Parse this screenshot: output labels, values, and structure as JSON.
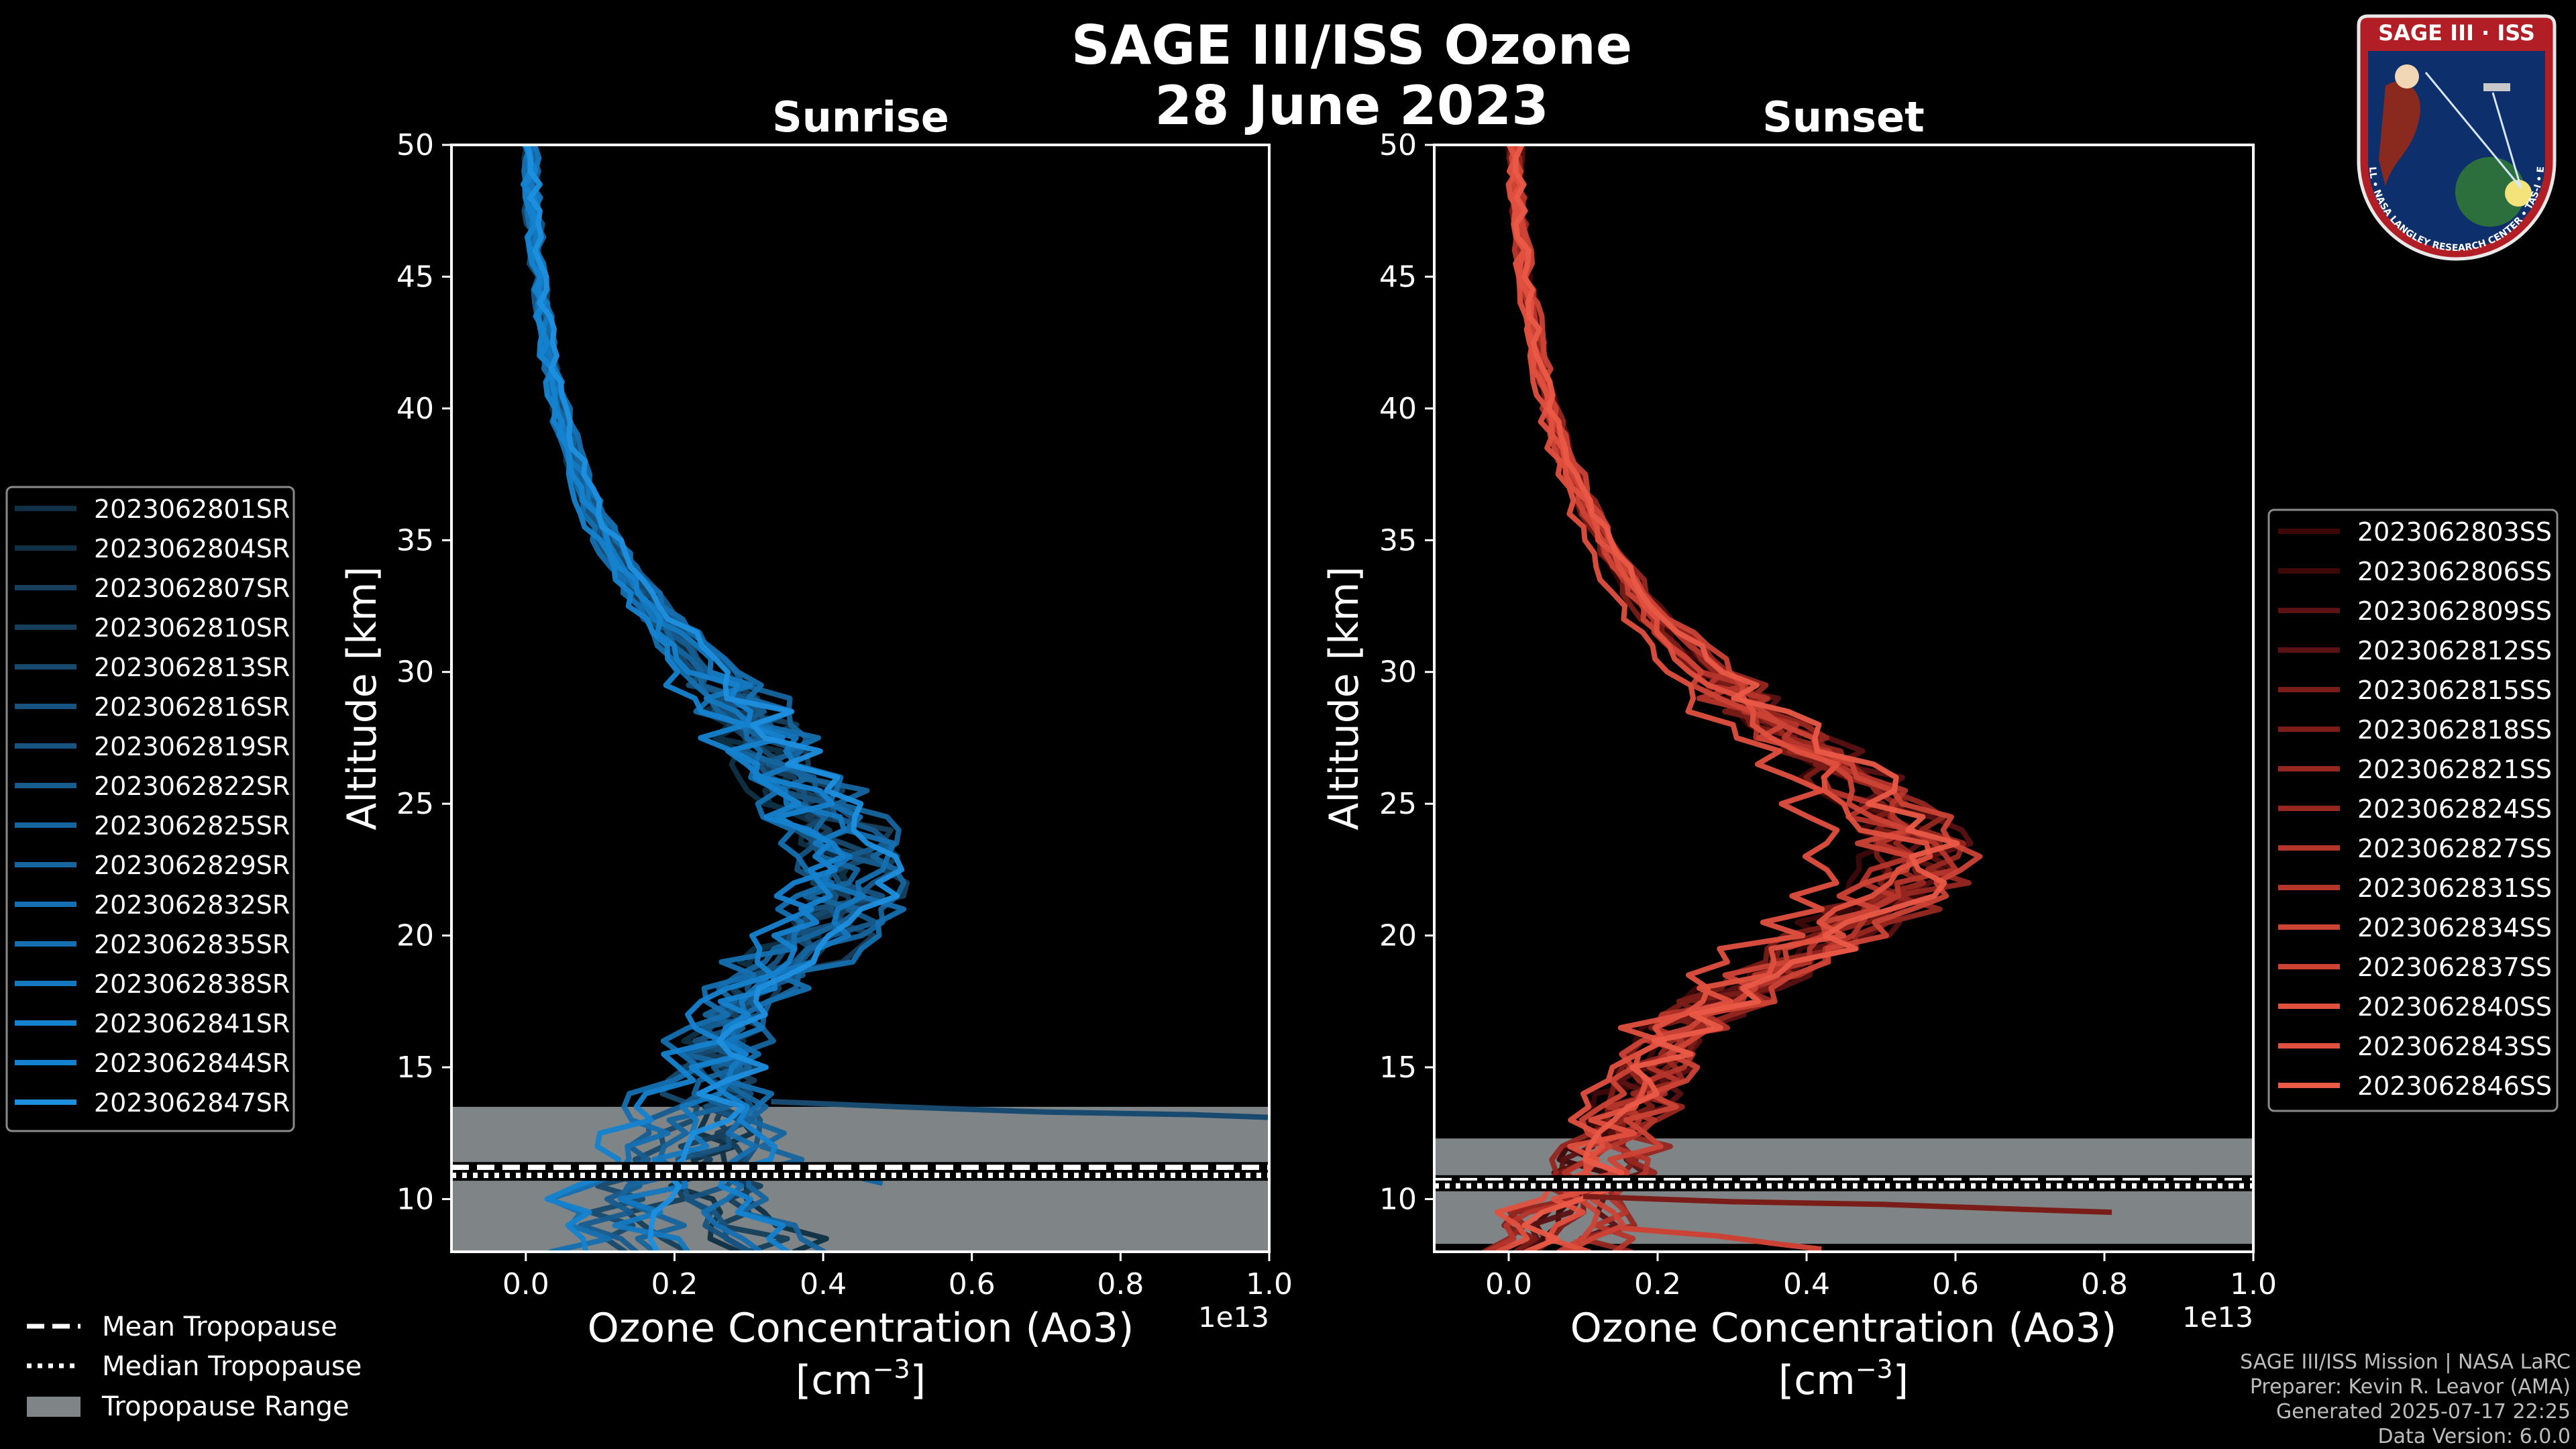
{
  "title": "SAGE III/ISS Ozone",
  "date": "28 June 2023",
  "colors": {
    "background": "#000000",
    "sunrise_palette": [
      "#0f3045",
      "#173f5c",
      "#174a6e",
      "#17537f",
      "#165c8f",
      "#16659e",
      "#156fb0",
      "#1478bf",
      "#1582cf",
      "#1d8fdf"
    ],
    "sunset_palette": [
      "#3d0808",
      "#5a1212",
      "#7a1c17",
      "#962720",
      "#b5352b",
      "#cc4336",
      "#e0503f",
      "#ea5a47"
    ],
    "tropopause_fill": "#7f8486"
  },
  "chart_data": [
    {
      "type": "line",
      "panel": "sunrise",
      "title": "Sunrise",
      "xlabel": "Ozone Concentration (Ao3)",
      "xunits": "[cm$^{-3}$]",
      "xunits_base": "[cm",
      "xunits_exp": "−3",
      "xunits_close": "]",
      "ylabel": "Altitude [km]",
      "offset_text": "1e13",
      "xlim": [
        -0.1,
        1.0
      ],
      "ylim": [
        8,
        50
      ],
      "xticks": [
        0.0,
        0.2,
        0.4,
        0.6,
        0.8,
        1.0
      ],
      "xtick_labels": [
        "0.0",
        "0.2",
        "0.4",
        "0.6",
        "0.8",
        "1.0"
      ],
      "yticks": [
        10,
        15,
        20,
        25,
        30,
        35,
        40,
        45,
        50
      ],
      "ytick_labels": [
        "10",
        "15",
        "20",
        "25",
        "30",
        "35",
        "40",
        "45",
        "50"
      ],
      "tropopause": {
        "min": 8,
        "max": 13.5,
        "mean": 11.2,
        "median": 10.9
      },
      "base_profile": {
        "altitude": [
          8,
          9,
          10,
          11,
          12,
          13,
          14,
          15,
          16,
          17,
          18,
          19,
          20,
          21,
          22,
          23,
          24,
          25,
          26,
          27,
          28,
          30,
          32,
          34,
          36,
          38,
          40,
          42,
          44,
          46,
          48,
          50
        ],
        "concentration": [
          0.2,
          0.18,
          0.17,
          0.2,
          0.22,
          0.23,
          0.24,
          0.25,
          0.26,
          0.28,
          0.31,
          0.35,
          0.39,
          0.42,
          0.43,
          0.43,
          0.41,
          0.38,
          0.35,
          0.33,
          0.3,
          0.24,
          0.18,
          0.13,
          0.09,
          0.065,
          0.045,
          0.03,
          0.02,
          0.012,
          0.008,
          0.005
        ]
      },
      "series": [
        {
          "name": "2023062801SR",
          "scale": 0.88,
          "offset": 0.02,
          "low_shift": 0.06,
          "seed": 1
        },
        {
          "name": "2023062804SR",
          "scale": 0.96,
          "offset": -0.01,
          "low_shift": 0.2,
          "seed": 2
        },
        {
          "name": "2023062807SR",
          "scale": 1.1,
          "offset": 0.0,
          "low_shift": -0.02,
          "seed": 3
        },
        {
          "name": "2023062810SR",
          "scale": 0.92,
          "offset": 0.03,
          "low_shift": 0.12,
          "seed": 4
        },
        {
          "name": "2023062813SR",
          "scale": 1.05,
          "offset": -0.02,
          "low_shift": -0.06,
          "seed": 5
        },
        {
          "name": "2023062816SR",
          "scale": 1.0,
          "offset": 0.01,
          "low_shift": 0.05,
          "seed": 6
        },
        {
          "name": "2023062819SR",
          "scale": 0.85,
          "offset": 0.04,
          "low_shift": 0.1,
          "seed": 7
        },
        {
          "name": "2023062822SR",
          "scale": 1.15,
          "offset": -0.03,
          "low_shift": -0.08,
          "seed": 8
        },
        {
          "name": "2023062825SR",
          "scale": 0.98,
          "offset": 0.0,
          "low_shift": 0.0,
          "seed": 9
        },
        {
          "name": "2023062829SR",
          "scale": 1.08,
          "offset": 0.02,
          "low_shift": 0.15,
          "seed": 10
        },
        {
          "name": "2023062832SR",
          "scale": 0.9,
          "offset": -0.01,
          "low_shift": -0.1,
          "seed": 11
        },
        {
          "name": "2023062835SR",
          "scale": 1.12,
          "offset": 0.01,
          "low_shift": 0.08,
          "seed": 12
        },
        {
          "name": "2023062838SR",
          "scale": 0.94,
          "offset": 0.03,
          "low_shift": -0.04,
          "seed": 13
        },
        {
          "name": "2023062841SR",
          "scale": 1.02,
          "offset": -0.02,
          "low_shift": 0.18,
          "seed": 14
        },
        {
          "name": "2023062844SR",
          "scale": 0.87,
          "offset": 0.0,
          "low_shift": -0.12,
          "seed": 15
        },
        {
          "name": "2023062847SR",
          "scale": 1.06,
          "offset": 0.02,
          "low_shift": -0.03,
          "seed": 16
        }
      ],
      "outliers": [
        {
          "altitude": [
            13.7,
            13.5,
            13.3,
            13.2,
            13.1
          ],
          "concentration": [
            0.33,
            0.5,
            0.7,
            0.9,
            1.0
          ]
        },
        {
          "altitude": [
            11.0,
            10.8,
            10.6
          ],
          "concentration": [
            0.35,
            0.45,
            0.48
          ]
        }
      ],
      "legend": {
        "location": "left-outside"
      }
    },
    {
      "type": "line",
      "panel": "sunset",
      "title": "Sunset",
      "xlabel": "Ozone Concentration (Ao3)",
      "xunits": "[cm$^{-3}$]",
      "xunits_base": "[cm",
      "xunits_exp": "−3",
      "xunits_close": "]",
      "ylabel": "Altitude [km]",
      "offset_text": "1e13",
      "xlim": [
        -0.1,
        1.0
      ],
      "ylim": [
        8,
        50
      ],
      "xticks": [
        0.0,
        0.2,
        0.4,
        0.6,
        0.8,
        1.0
      ],
      "xtick_labels": [
        "0.0",
        "0.2",
        "0.4",
        "0.6",
        "0.8",
        "1.0"
      ],
      "yticks": [
        10,
        15,
        20,
        25,
        30,
        35,
        40,
        45,
        50
      ],
      "ytick_labels": [
        "10",
        "15",
        "20",
        "25",
        "30",
        "35",
        "40",
        "45",
        "50"
      ],
      "tropopause": {
        "min": 8.3,
        "max": 12.3,
        "mean": 10.7,
        "median": 10.5
      },
      "base_profile": {
        "altitude": [
          8,
          9,
          10,
          11,
          12,
          13,
          14,
          15,
          16,
          17,
          18,
          19,
          20,
          21,
          22,
          23,
          24,
          25,
          26,
          27,
          28,
          30,
          32,
          34,
          36,
          38,
          40,
          42,
          44,
          46,
          48,
          50
        ],
        "concentration": [
          0.03,
          0.05,
          0.08,
          0.1,
          0.12,
          0.14,
          0.17,
          0.19,
          0.22,
          0.26,
          0.32,
          0.38,
          0.44,
          0.5,
          0.54,
          0.55,
          0.54,
          0.5,
          0.46,
          0.41,
          0.36,
          0.27,
          0.2,
          0.15,
          0.11,
          0.08,
          0.055,
          0.04,
          0.028,
          0.018,
          0.012,
          0.008
        ]
      },
      "series": [
        {
          "name": "2023062803SS",
          "scale": 0.92,
          "offset": 0.0,
          "low_shift": 0.02,
          "seed": 21
        },
        {
          "name": "2023062806SS",
          "scale": 1.02,
          "offset": -0.01,
          "low_shift": -0.02,
          "seed": 22
        },
        {
          "name": "2023062809SS",
          "scale": 0.97,
          "offset": 0.02,
          "low_shift": 0.06,
          "seed": 23
        },
        {
          "name": "2023062812SS",
          "scale": 1.06,
          "offset": 0.0,
          "low_shift": -0.03,
          "seed": 24
        },
        {
          "name": "2023062815SS",
          "scale": 0.9,
          "offset": 0.01,
          "low_shift": 0.04,
          "seed": 25
        },
        {
          "name": "2023062818SS",
          "scale": 1.04,
          "offset": -0.02,
          "low_shift": 0.0,
          "seed": 26
        },
        {
          "name": "2023062821SS",
          "scale": 0.95,
          "offset": 0.02,
          "low_shift": 0.08,
          "seed": 27
        },
        {
          "name": "2023062824SS",
          "scale": 1.08,
          "offset": 0.0,
          "low_shift": -0.05,
          "seed": 28
        },
        {
          "name": "2023062827SS",
          "scale": 0.98,
          "offset": -0.01,
          "low_shift": 0.1,
          "seed": 29
        },
        {
          "name": "2023062831SS",
          "scale": 1.01,
          "offset": 0.01,
          "low_shift": -0.04,
          "seed": 30
        },
        {
          "name": "2023062834SS",
          "scale": 0.93,
          "offset": 0.0,
          "low_shift": 0.03,
          "seed": 31
        },
        {
          "name": "2023062837SS",
          "scale": 1.05,
          "offset": 0.02,
          "low_shift": 0.07,
          "seed": 32
        },
        {
          "name": "2023062840SS",
          "scale": 0.99,
          "offset": -0.02,
          "low_shift": -0.02,
          "seed": 33
        },
        {
          "name": "2023062843SS",
          "scale": 0.8,
          "offset": 0.0,
          "low_shift": 0.05,
          "seed": 34
        },
        {
          "name": "2023062846SS",
          "scale": 1.03,
          "offset": 0.01,
          "low_shift": 0.0,
          "seed": 35
        }
      ],
      "outliers": [
        {
          "altitude": [
            10.1,
            9.9,
            9.8,
            9.6,
            9.5
          ],
          "concentration": [
            0.1,
            0.3,
            0.5,
            0.7,
            0.81
          ]
        },
        {
          "altitude": [
            8.9,
            8.6,
            8.3,
            8.1
          ],
          "concentration": [
            0.15,
            0.28,
            0.36,
            0.42
          ]
        }
      ],
      "legend": {
        "location": "right-outside"
      }
    }
  ],
  "tropopause_legend": [
    {
      "label": "Mean Tropopause",
      "style": "dashed"
    },
    {
      "label": "Median Tropopause",
      "style": "dotted"
    },
    {
      "label": "Tropopause Range",
      "style": "patch"
    }
  ],
  "credits": [
    "SAGE III/ISS Mission | NASA LaRC",
    "Preparer: Kevin R. Leavor (AMA)",
    "Generated 2025-07-17 22:25",
    "Data Version: 6.0.0"
  ],
  "logo": {
    "icon": "sage-iii-iss-mission-patch",
    "title": "SAGE III · ISS",
    "ring_text": "BALL • NASA LANGLEY RESEARCH CENTER • TAS-I • ESA"
  }
}
